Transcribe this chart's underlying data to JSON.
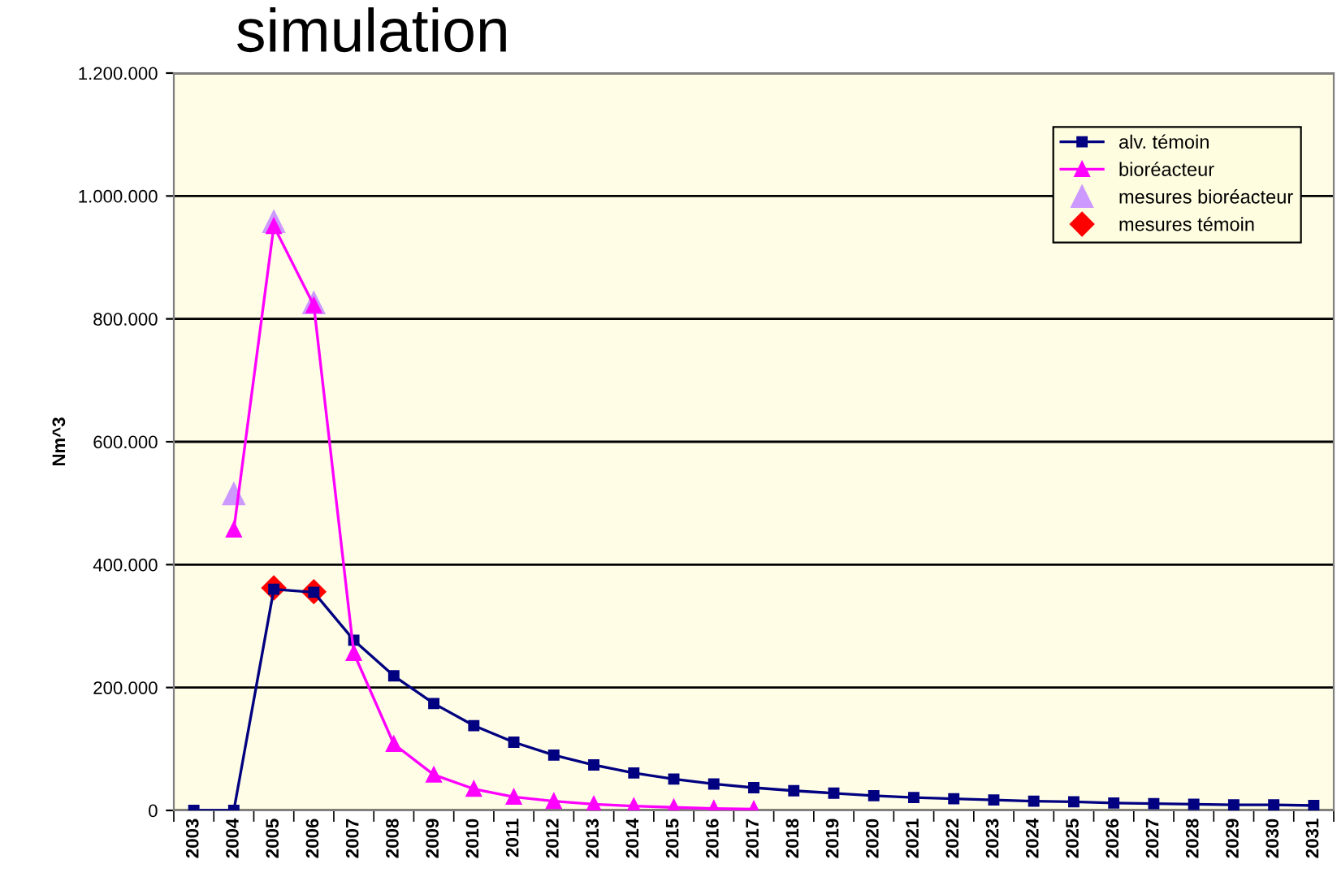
{
  "chart_data": {
    "type": "line",
    "title": "simulation",
    "ylabel": "Nm^3",
    "categories": [
      "2003",
      "2004",
      "2005",
      "2006",
      "2007",
      "2008",
      "2009",
      "2010",
      "2011",
      "2012",
      "2013",
      "2014",
      "2015",
      "2016",
      "2017",
      "2018",
      "2019",
      "2020",
      "2021",
      "2022",
      "2023",
      "2024",
      "2025",
      "2026",
      "2027",
      "2028",
      "2029",
      "2030",
      "2031"
    ],
    "series": [
      {
        "name": "alv. témoin",
        "color": "#000080",
        "marker": "square",
        "values": [
          0,
          0,
          360000,
          355000,
          277000,
          219000,
          174000,
          138000,
          111000,
          90000,
          74000,
          61000,
          51000,
          43000,
          37000,
          32000,
          28000,
          24000,
          21000,
          19000,
          17000,
          15000,
          14000,
          12000,
          11000,
          10000,
          9000,
          9000,
          8000
        ]
      },
      {
        "name": "bioréacteur",
        "color": "#ff00ff",
        "marker": "triangle",
        "values": [
          null,
          457000,
          951000,
          822000,
          256000,
          108000,
          58000,
          35000,
          22000,
          15000,
          10000,
          7000,
          5000,
          3000,
          2000,
          null,
          null,
          null,
          null,
          null,
          null,
          null,
          null,
          null,
          null,
          null,
          null,
          null,
          null
        ]
      },
      {
        "name": "mesures bioréacteur",
        "type": "scatter",
        "color": "#cc99ff",
        "marker": "triangle",
        "values": [
          null,
          515000,
          958000,
          826000,
          null,
          null,
          null,
          null,
          null,
          null,
          null,
          null,
          null,
          null,
          null,
          null,
          null,
          null,
          null,
          null,
          null,
          null,
          null,
          null,
          null,
          null,
          null,
          null,
          null
        ]
      },
      {
        "name": "mesures témoin",
        "type": "scatter",
        "color": "#ff0000",
        "marker": "diamond",
        "values": [
          null,
          null,
          362000,
          356000,
          null,
          null,
          null,
          null,
          null,
          null,
          null,
          null,
          null,
          null,
          null,
          null,
          null,
          null,
          null,
          null,
          null,
          null,
          null,
          null,
          null,
          null,
          null,
          null,
          null
        ]
      }
    ],
    "ylim": [
      0,
      1200000
    ],
    "yticks": [
      {
        "value": 0,
        "label": "0"
      },
      {
        "value": 200000,
        "label": "200.000"
      },
      {
        "value": 400000,
        "label": "400.000"
      },
      {
        "value": 600000,
        "label": "600.000"
      },
      {
        "value": 800000,
        "label": "800.000"
      },
      {
        "value": 1000000,
        "label": "1.000.000"
      },
      {
        "value": 1200000,
        "label": "1.200.000"
      }
    ],
    "grid": "y",
    "legend": "top right",
    "line_style": "solid"
  }
}
